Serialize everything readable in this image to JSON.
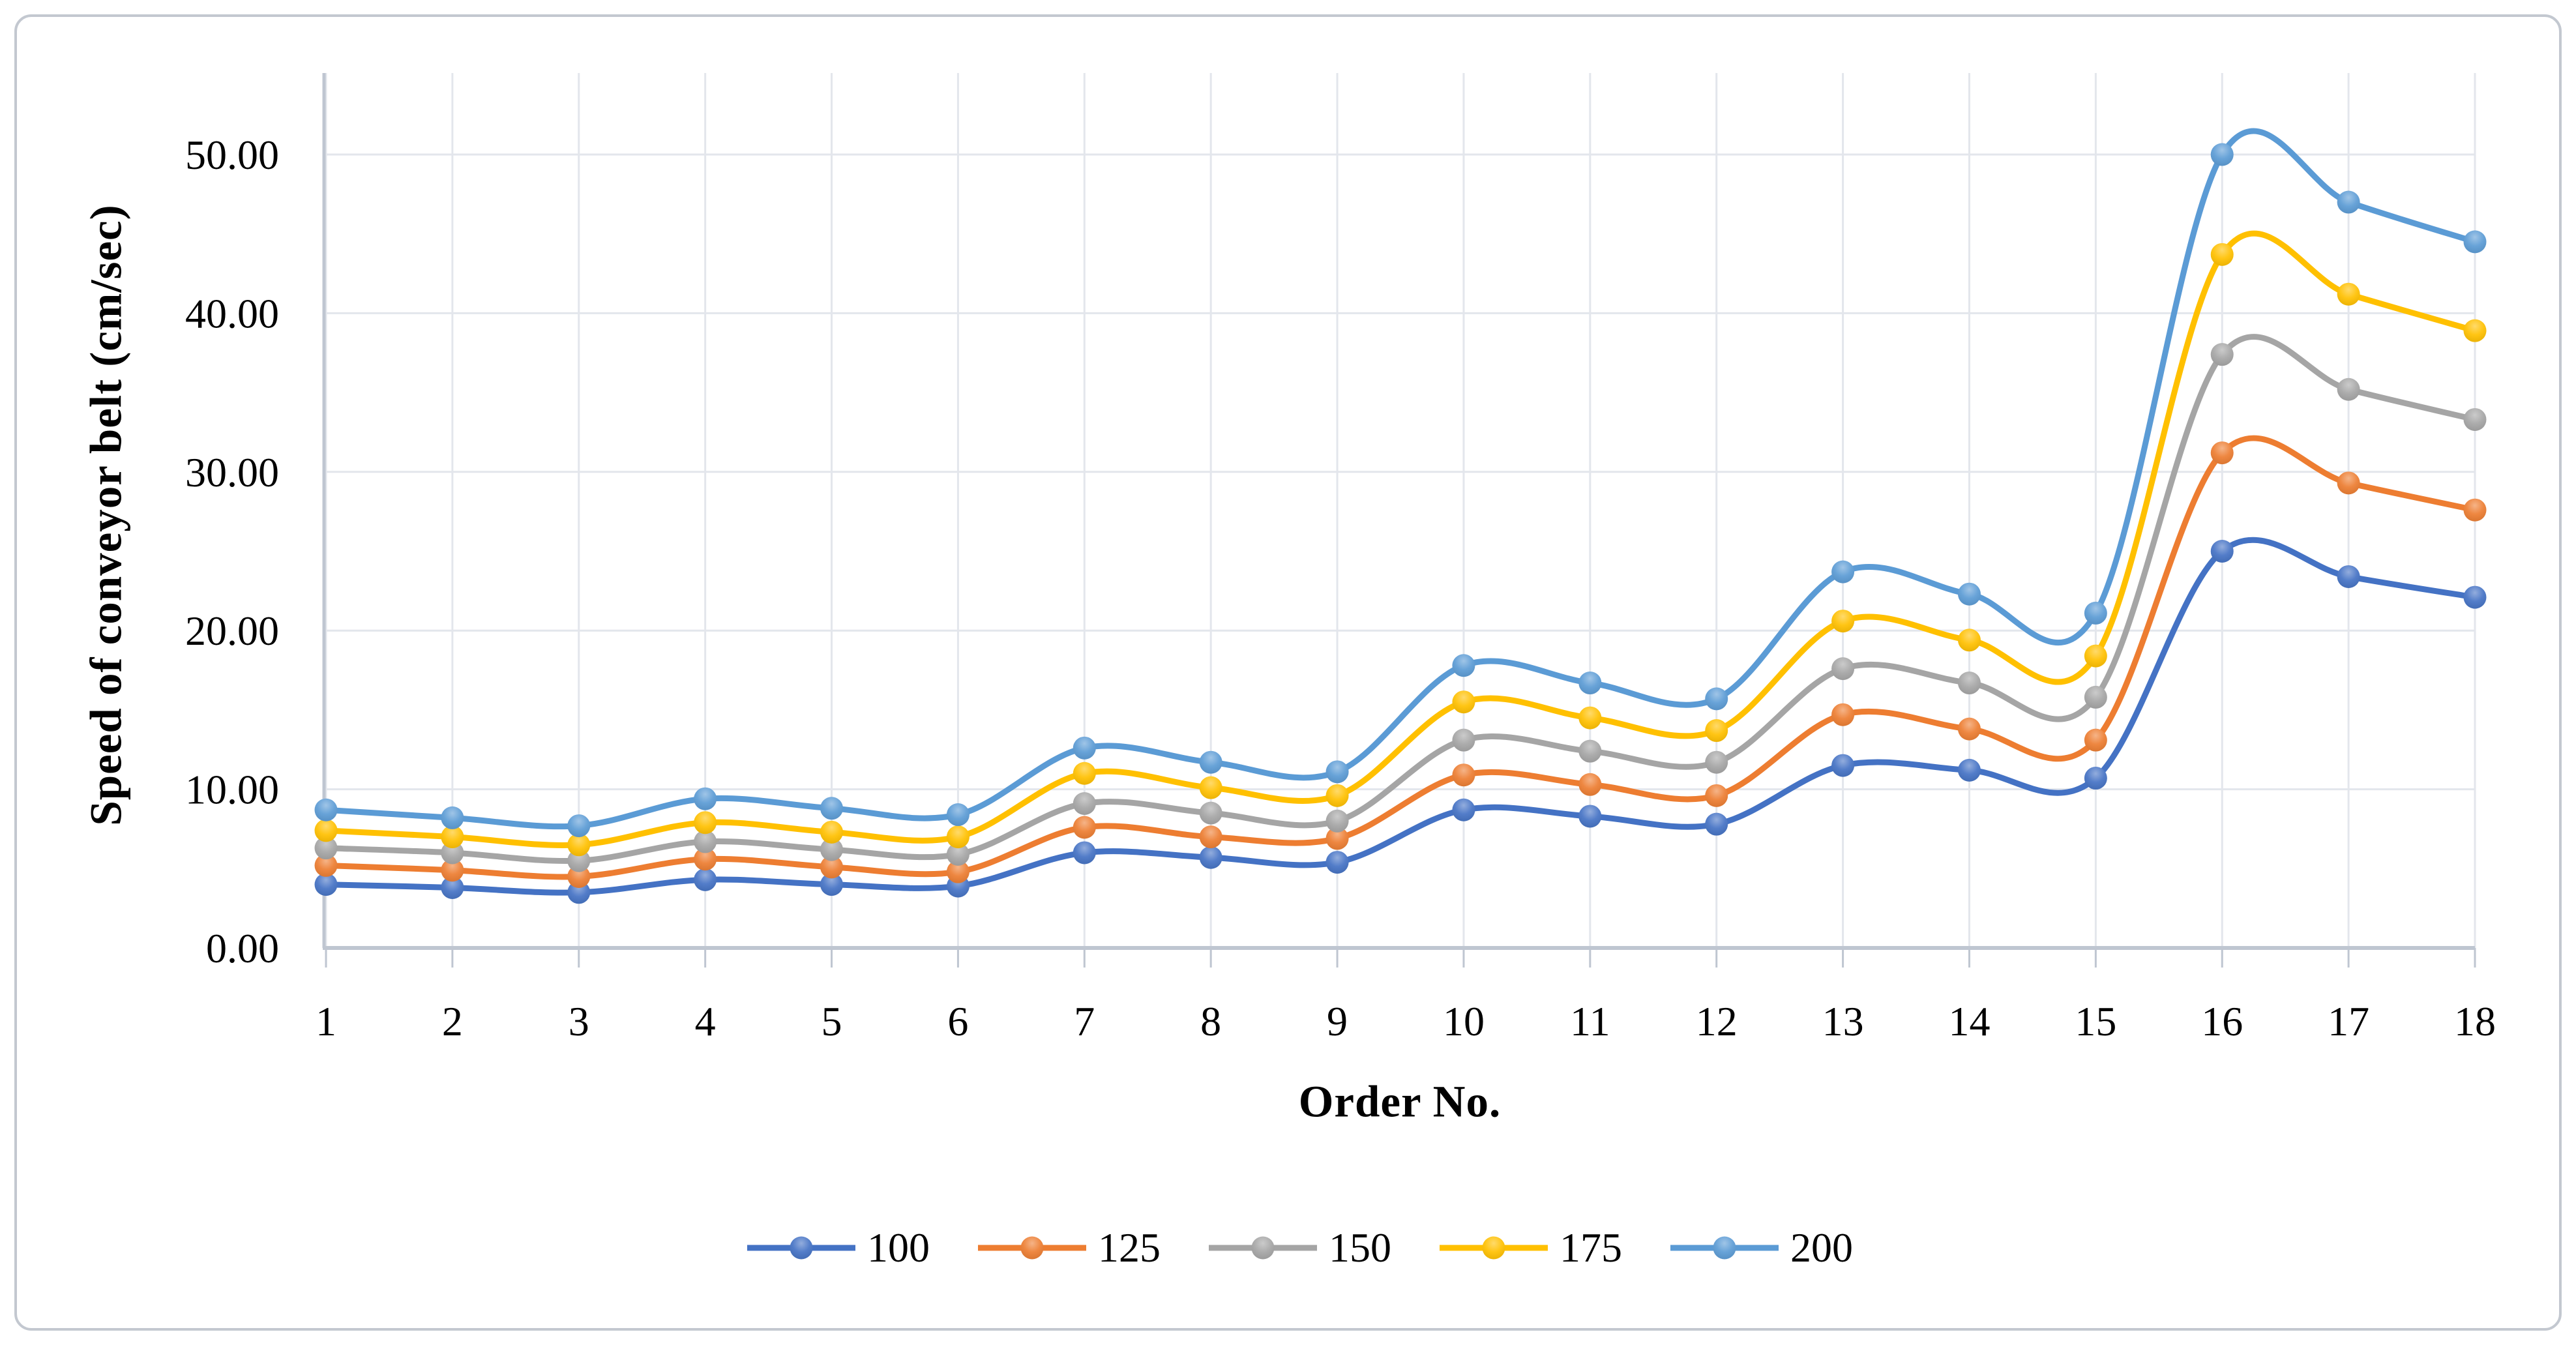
{
  "frame": {
    "background": "#FFFFFF",
    "border_color": "#C3C8D0"
  },
  "axis_style": {
    "axis_line_color": "#BFC6D1",
    "gridline_color": "#E3E6EC",
    "tick_label_color": "#000000",
    "tick_label_size": 64,
    "title_size": 69
  },
  "legend": {
    "position": "bottom",
    "items": [
      "100",
      "125",
      "150",
      "175",
      "200"
    ]
  },
  "chart_data": {
    "type": "line",
    "title": "",
    "xlabel": "Order No.",
    "ylabel": "Speed of conveyor belt (cm/sec)",
    "categories": [
      "1",
      "2",
      "3",
      "4",
      "5",
      "6",
      "7",
      "8",
      "9",
      "10",
      "11",
      "12",
      "13",
      "14",
      "15",
      "16",
      "17",
      "18"
    ],
    "y_ticks": [
      0,
      10,
      20,
      30,
      40,
      50
    ],
    "y_tick_labels": [
      "0.00",
      "10.00",
      "20.00",
      "30.00",
      "40.00",
      "50.00"
    ],
    "ylim": [
      0,
      55
    ],
    "grid": true,
    "smooth_lines": true,
    "legend_position": "bottom",
    "series": [
      {
        "name": "100",
        "color": "#4472C4",
        "values": [
          4.0,
          3.8,
          3.5,
          4.3,
          4.0,
          3.9,
          6.0,
          5.7,
          5.4,
          8.7,
          8.3,
          7.8,
          11.5,
          11.2,
          10.7,
          25.0,
          23.4,
          22.1
        ]
      },
      {
        "name": "125",
        "color": "#ED7D31",
        "values": [
          5.2,
          4.9,
          4.5,
          5.6,
          5.1,
          4.8,
          7.6,
          7.0,
          6.9,
          10.9,
          10.3,
          9.6,
          14.7,
          13.8,
          13.1,
          31.2,
          29.3,
          27.6
        ]
      },
      {
        "name": "150",
        "color": "#A5A5A5",
        "values": [
          6.3,
          6.0,
          5.5,
          6.7,
          6.2,
          5.9,
          9.1,
          8.5,
          8.0,
          13.1,
          12.4,
          11.7,
          17.6,
          16.7,
          15.8,
          37.4,
          35.2,
          33.3
        ]
      },
      {
        "name": "175",
        "color": "#FFC000",
        "values": [
          7.4,
          7.0,
          6.5,
          7.9,
          7.3,
          7.0,
          11.0,
          10.1,
          9.6,
          15.5,
          14.5,
          13.7,
          20.6,
          19.4,
          18.4,
          43.7,
          41.2,
          38.9
        ]
      },
      {
        "name": "200",
        "color": "#5B9BD5",
        "values": [
          8.7,
          8.2,
          7.7,
          9.4,
          8.8,
          8.4,
          12.6,
          11.7,
          11.1,
          17.8,
          16.7,
          15.7,
          23.7,
          22.3,
          21.1,
          50.0,
          47.0,
          44.5
        ]
      }
    ]
  }
}
